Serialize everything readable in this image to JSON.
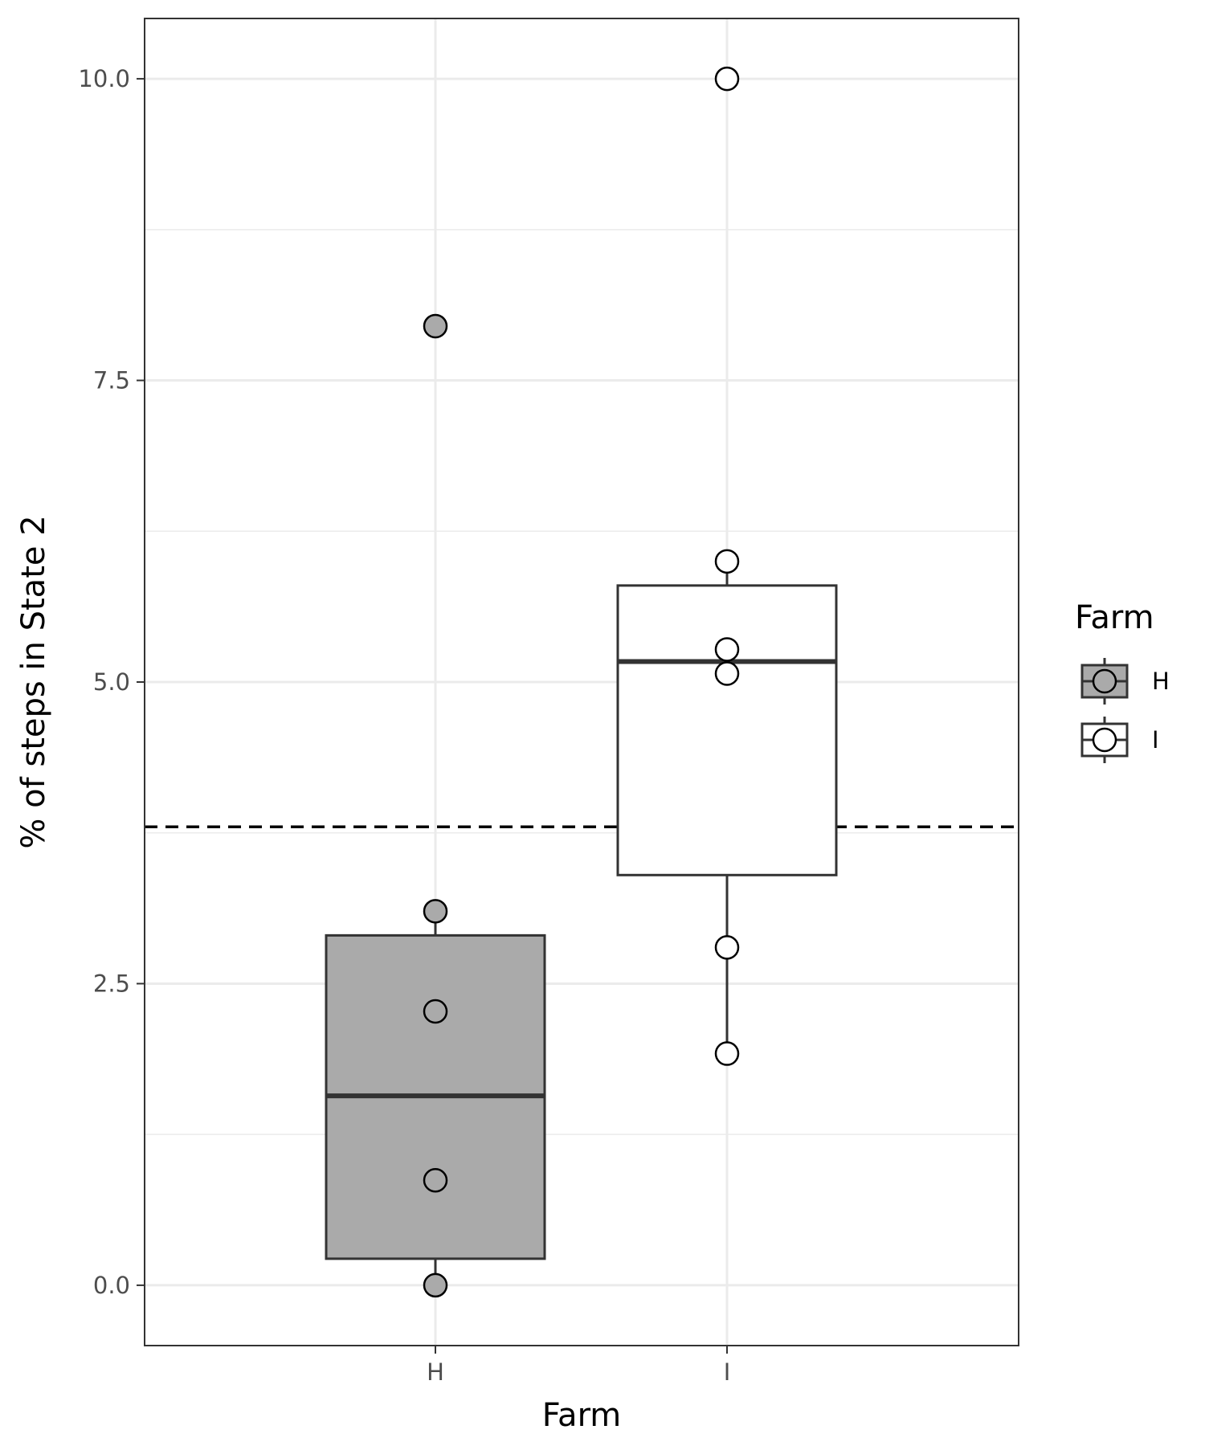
{
  "chart_data": {
    "type": "boxplot",
    "xlabel": "Farm",
    "ylabel": "% of steps in State 2",
    "ylim": [
      -0.5,
      10.5
    ],
    "y_ticks": [
      "0.0",
      "2.5",
      "5.0",
      "7.5",
      "10.0"
    ],
    "y_tick_values": [
      0,
      2.5,
      5,
      7.5,
      10
    ],
    "categories": [
      "H",
      "I"
    ],
    "reference_line": {
      "y": 3.8,
      "style": "dashed"
    },
    "boxes": [
      {
        "category": "H",
        "fill": "#aaaaaa",
        "whisker_low": 0.0,
        "q1": 0.22,
        "median": 1.57,
        "q3": 2.9,
        "whisker_high": 3.1
      },
      {
        "category": "I",
        "fill": "#ffffff",
        "whisker_low": 1.92,
        "q1": 3.4,
        "median": 5.17,
        "q3": 5.8,
        "whisker_high": 6.0
      }
    ],
    "points": [
      {
        "category": "H",
        "values": [
          7.95,
          3.1,
          2.27,
          0.87,
          0.0
        ]
      },
      {
        "category": "I",
        "values": [
          10.0,
          6.0,
          5.27,
          5.07,
          2.8,
          1.92
        ]
      }
    ],
    "outliers": [
      {
        "category": "H",
        "values": [
          7.95
        ]
      },
      {
        "category": "I",
        "values": [
          10.0
        ]
      }
    ],
    "legend": {
      "title": "Farm",
      "position": "right",
      "entries": [
        {
          "label": "H",
          "fill": "#aaaaaa"
        },
        {
          "label": "I",
          "fill": "#ffffff"
        }
      ]
    },
    "grid": true
  }
}
